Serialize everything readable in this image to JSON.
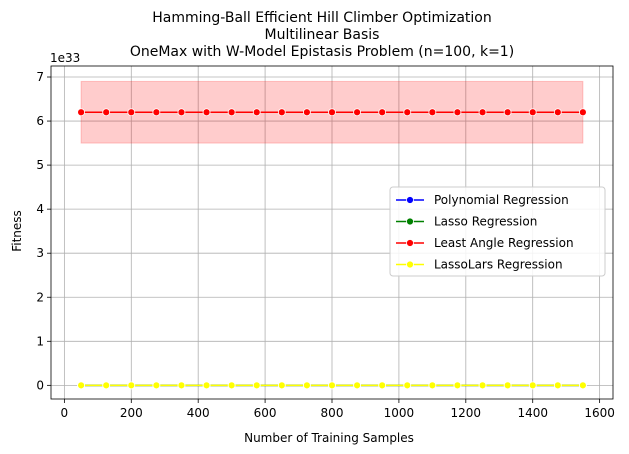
{
  "chart_data": {
    "type": "line",
    "title": [
      "Hamming-Ball Efficient Hill Climber Optimization",
      "Multilinear Basis",
      "OneMax with W-Model Epistasis Problem (n=100, k=1)"
    ],
    "xlabel": "Number of Training Samples",
    "ylabel": "Fitness",
    "y_multiplier": "1e33",
    "xlim": [
      -40,
      1640
    ],
    "ylim": [
      -0.31,
      7.25
    ],
    "xticks": [
      0,
      200,
      400,
      600,
      800,
      1000,
      1200,
      1400,
      1600
    ],
    "yticks": [
      0,
      1,
      2,
      3,
      4,
      5,
      6,
      7
    ],
    "grid": true,
    "legend_position": "center-right",
    "x": [
      50,
      125,
      200,
      275,
      350,
      425,
      500,
      575,
      650,
      725,
      800,
      875,
      950,
      1025,
      1100,
      1175,
      1250,
      1325,
      1400,
      1475,
      1550
    ],
    "series": [
      {
        "name": "Polynomial Regression",
        "color": "#0000ff",
        "values": [
          0,
          0,
          0,
          0,
          0,
          0,
          0,
          0,
          0,
          0,
          0,
          0,
          0,
          0,
          0,
          0,
          0,
          0,
          0,
          0,
          0
        ]
      },
      {
        "name": "Lasso Regression",
        "color": "#008000",
        "values": [
          0,
          0,
          0,
          0,
          0,
          0,
          0,
          0,
          0,
          0,
          0,
          0,
          0,
          0,
          0,
          0,
          0,
          0,
          0,
          0,
          0
        ]
      },
      {
        "name": "Least Angle Regression",
        "color": "#ff0000",
        "values": [
          6.2,
          6.2,
          6.2,
          6.2,
          6.2,
          6.2,
          6.2,
          6.2,
          6.2,
          6.2,
          6.2,
          6.2,
          6.2,
          6.2,
          6.2,
          6.2,
          6.2,
          6.2,
          6.2,
          6.2,
          6.2
        ],
        "band": [
          5.5,
          6.9
        ]
      },
      {
        "name": "LassoLars Regression",
        "color": "#ffff00",
        "values": [
          0,
          0,
          0,
          0,
          0,
          0,
          0,
          0,
          0,
          0,
          0,
          0,
          0,
          0,
          0,
          0,
          0,
          0,
          0,
          0,
          0
        ]
      }
    ]
  }
}
